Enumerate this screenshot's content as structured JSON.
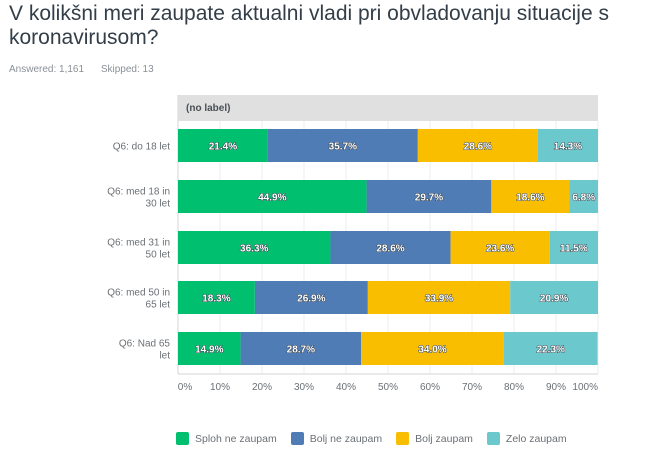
{
  "question": {
    "title": "V kolikšni meri zaupate aktualni vladi pri obvladovanju situacije s koronavirusom?",
    "answered": "Answered: 1,161",
    "skipped": "Skipped: 13"
  },
  "chart_data": {
    "type": "bar",
    "orientation": "horizontal",
    "stacked": true,
    "group_header": "(no label)",
    "categories": [
      [
        "Q6: do 18 let"
      ],
      [
        "Q6: med 18 in",
        "30 let"
      ],
      [
        "Q6: med 31 in",
        "50 let"
      ],
      [
        "Q6: med 50 in",
        "65 let"
      ],
      [
        "Q6: Nad 65",
        "let"
      ]
    ],
    "series": [
      {
        "name": "Sploh ne zaupam",
        "color": "#00bf6f",
        "values": [
          21.4,
          44.9,
          36.3,
          18.3,
          14.9
        ],
        "labels": [
          "21.4%",
          "44.9%",
          "36.3%",
          "18.3%",
          "14.9%"
        ]
      },
      {
        "name": "Bolj ne zaupam",
        "color": "#507cb6",
        "values": [
          35.7,
          29.7,
          28.6,
          26.9,
          28.7
        ],
        "labels": [
          "35.7%",
          "29.7%",
          "28.6%",
          "26.9%",
          "28.7%"
        ]
      },
      {
        "name": "Bolj zaupam",
        "color": "#f9be00",
        "values": [
          28.6,
          18.6,
          23.6,
          33.9,
          34.0
        ],
        "labels": [
          "28.6%",
          "18.6%",
          "23.6%",
          "33.9%",
          "34.0%"
        ]
      },
      {
        "name": "Zelo zaupam",
        "color": "#6bc8cd",
        "values": [
          14.3,
          6.8,
          11.5,
          20.9,
          22.3
        ],
        "labels": [
          "14.3%",
          "6.8%",
          "11.5%",
          "20.9%",
          "22.3%"
        ]
      }
    ],
    "xticks": [
      "0%",
      "10%",
      "20%",
      "30%",
      "40%",
      "50%",
      "60%",
      "70%",
      "80%",
      "90%",
      "100%"
    ],
    "xlim": [
      0,
      100
    ],
    "grid": true,
    "legend_position": "bottom"
  }
}
